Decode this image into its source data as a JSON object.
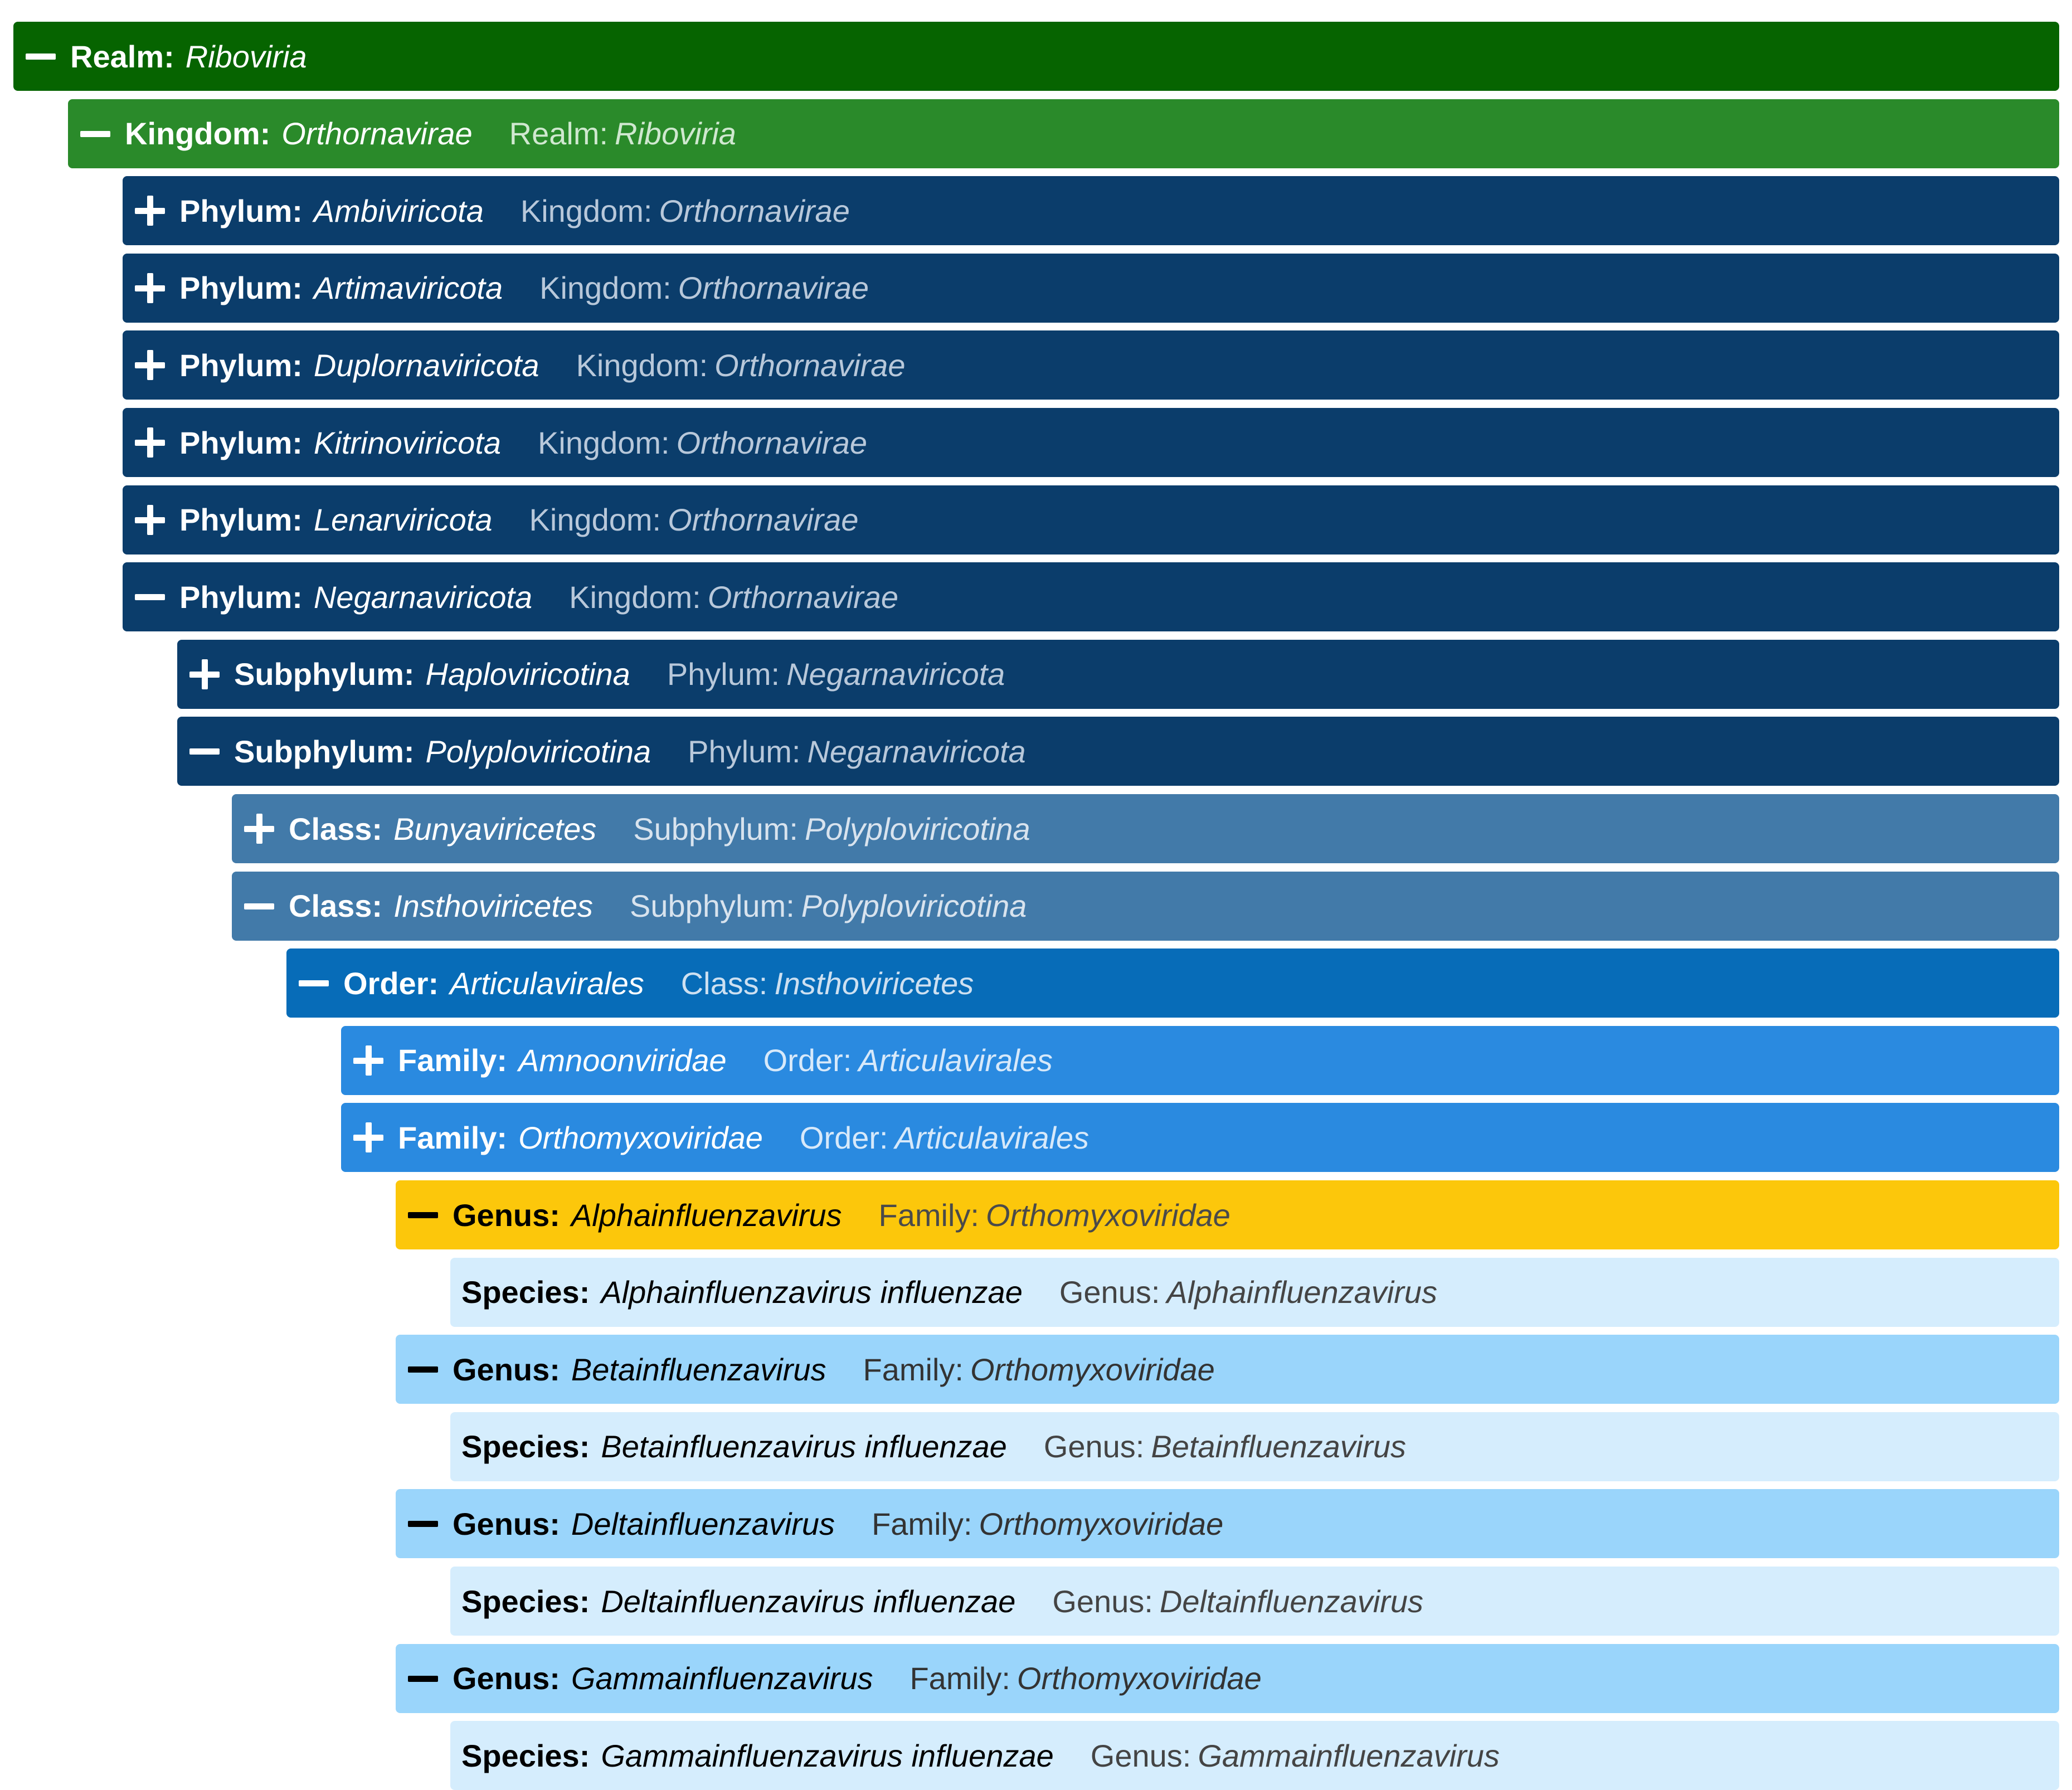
{
  "styles": {
    "realm": {
      "bg": "#066400",
      "fg": "#ffffff",
      "muted": "#cfe3cc"
    },
    "kingdom": {
      "bg": "#2a8a2a",
      "fg": "#ffffff",
      "muted": "#cfe8cf"
    },
    "phylum": {
      "bg": "#0b3d6b",
      "fg": "#ffffff",
      "muted": "#b8c8da"
    },
    "class": {
      "bg": "#427aa9",
      "fg": "#ffffff",
      "muted": "#d8e3ee"
    },
    "order": {
      "bg": "#076cb8",
      "fg": "#ffffff",
      "muted": "#cde0f1"
    },
    "family": {
      "bg": "#2a8ae0",
      "fg": "#ffffff",
      "muted": "#d7e9fa"
    },
    "genus_selected": {
      "bg": "#fcc70b",
      "fg": "#000000",
      "muted": "#4a4a4a"
    },
    "genus": {
      "bg": "#9ad5fb",
      "fg": "#000000",
      "muted": "#333333"
    },
    "species": {
      "bg": "#d5edfd",
      "fg": "#000000",
      "muted": "#444444"
    }
  },
  "rows": [
    {
      "depth": 0,
      "toggle": "minus",
      "style": "realm",
      "rank": "Realm:",
      "name": "Riboviria",
      "parent_rank": "",
      "parent_name": ""
    },
    {
      "depth": 1,
      "toggle": "minus",
      "style": "kingdom",
      "rank": "Kingdom:",
      "name": "Orthornavirae",
      "parent_rank": "Realm:",
      "parent_name": "Riboviria"
    },
    {
      "depth": 2,
      "toggle": "plus",
      "style": "phylum",
      "rank": "Phylum:",
      "name": "Ambiviricota",
      "parent_rank": "Kingdom:",
      "parent_name": "Orthornavirae"
    },
    {
      "depth": 2,
      "toggle": "plus",
      "style": "phylum",
      "rank": "Phylum:",
      "name": "Artimaviricota",
      "parent_rank": "Kingdom:",
      "parent_name": "Orthornavirae"
    },
    {
      "depth": 2,
      "toggle": "plus",
      "style": "phylum",
      "rank": "Phylum:",
      "name": "Duplornaviricota",
      "parent_rank": "Kingdom:",
      "parent_name": "Orthornavirae"
    },
    {
      "depth": 2,
      "toggle": "plus",
      "style": "phylum",
      "rank": "Phylum:",
      "name": "Kitrinoviricota",
      "parent_rank": "Kingdom:",
      "parent_name": "Orthornavirae"
    },
    {
      "depth": 2,
      "toggle": "plus",
      "style": "phylum",
      "rank": "Phylum:",
      "name": "Lenarviricota",
      "parent_rank": "Kingdom:",
      "parent_name": "Orthornavirae"
    },
    {
      "depth": 2,
      "toggle": "minus",
      "style": "phylum",
      "rank": "Phylum:",
      "name": "Negarnaviricota",
      "parent_rank": "Kingdom:",
      "parent_name": "Orthornavirae"
    },
    {
      "depth": 3,
      "toggle": "plus",
      "style": "phylum",
      "rank": "Subphylum:",
      "name": "Haploviricotina",
      "parent_rank": "Phylum:",
      "parent_name": "Negarnaviricota"
    },
    {
      "depth": 3,
      "toggle": "minus",
      "style": "phylum",
      "rank": "Subphylum:",
      "name": "Polyploviricotina",
      "parent_rank": "Phylum:",
      "parent_name": "Negarnaviricota"
    },
    {
      "depth": 4,
      "toggle": "plus",
      "style": "class",
      "rank": "Class:",
      "name": "Bunyaviricetes",
      "parent_rank": "Subphylum:",
      "parent_name": "Polyploviricotina"
    },
    {
      "depth": 4,
      "toggle": "minus",
      "style": "class",
      "rank": "Class:",
      "name": "Insthoviricetes",
      "parent_rank": "Subphylum:",
      "parent_name": "Polyploviricotina"
    },
    {
      "depth": 5,
      "toggle": "minus",
      "style": "order",
      "rank": "Order:",
      "name": "Articulavirales",
      "parent_rank": "Class:",
      "parent_name": "Insthoviricetes"
    },
    {
      "depth": 6,
      "toggle": "plus",
      "style": "family",
      "rank": "Family:",
      "name": "Amnoonviridae",
      "parent_rank": "Order:",
      "parent_name": "Articulavirales"
    },
    {
      "depth": 6,
      "toggle": "plus",
      "style": "family",
      "rank": "Family:",
      "name": "Orthomyxoviridae",
      "parent_rank": "Order:",
      "parent_name": "Articulavirales"
    },
    {
      "depth": 7,
      "toggle": "minus",
      "style": "genus_selected",
      "rank": "Genus:",
      "name": "Alphainfluenzavirus",
      "parent_rank": "Family:",
      "parent_name": "Orthomyxoviridae"
    },
    {
      "depth": 8,
      "toggle": "none",
      "style": "species",
      "rank": "Species:",
      "name": "Alphainfluenzavirus influenzae",
      "parent_rank": "Genus:",
      "parent_name": "Alphainfluenzavirus"
    },
    {
      "depth": 7,
      "toggle": "minus",
      "style": "genus",
      "rank": "Genus:",
      "name": "Betainfluenzavirus",
      "parent_rank": "Family:",
      "parent_name": "Orthomyxoviridae"
    },
    {
      "depth": 8,
      "toggle": "none",
      "style": "species",
      "rank": "Species:",
      "name": "Betainfluenzavirus influenzae",
      "parent_rank": "Genus:",
      "parent_name": "Betainfluenzavirus"
    },
    {
      "depth": 7,
      "toggle": "minus",
      "style": "genus",
      "rank": "Genus:",
      "name": "Deltainfluenzavirus",
      "parent_rank": "Family:",
      "parent_name": "Orthomyxoviridae"
    },
    {
      "depth": 8,
      "toggle": "none",
      "style": "species",
      "rank": "Species:",
      "name": "Deltainfluenzavirus influenzae",
      "parent_rank": "Genus:",
      "parent_name": "Deltainfluenzavirus"
    },
    {
      "depth": 7,
      "toggle": "minus",
      "style": "genus",
      "rank": "Genus:",
      "name": "Gammainfluenzavirus",
      "parent_rank": "Family:",
      "parent_name": "Orthomyxoviridae"
    },
    {
      "depth": 8,
      "toggle": "none",
      "style": "species",
      "rank": "Species:",
      "name": "Gammainfluenzavirus influenzae",
      "parent_rank": "Genus:",
      "parent_name": "Gammainfluenzavirus"
    }
  ]
}
